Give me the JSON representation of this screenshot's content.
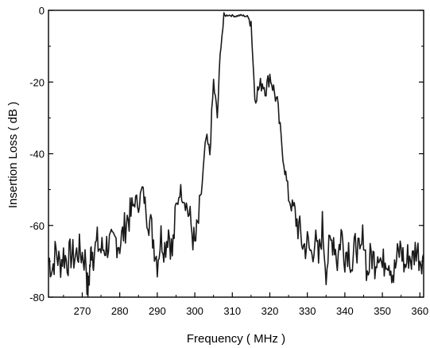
{
  "chart_data": {
    "type": "line",
    "title": "",
    "xlabel": "Frequency ( MHz )",
    "ylabel": "Insertion Loss ( dB )",
    "xlim": [
      261,
      361
    ],
    "ylim": [
      -80,
      0
    ],
    "x_ticks": [
      270,
      280,
      290,
      300,
      310,
      320,
      330,
      340,
      350,
      360
    ],
    "x_tick_labels": [
      "270",
      "280",
      "290",
      "300",
      "310",
      "320",
      "330",
      "340",
      "350",
      "360"
    ],
    "y_ticks": [
      0,
      -20,
      -40,
      -60,
      -80
    ],
    "y_tick_labels": [
      "0",
      "-20",
      "-40",
      "-60",
      "-80"
    ],
    "grid": false,
    "line_color": "#1a1a1a",
    "series": [
      {
        "x": [
          261,
          262,
          263,
          264,
          265,
          266,
          267,
          268,
          269,
          270,
          271,
          271.5,
          272,
          272.5,
          273,
          274,
          275,
          276,
          277,
          278,
          279,
          280,
          281,
          282,
          283,
          284,
          285,
          286,
          287,
          288,
          289,
          290,
          291,
          292,
          293,
          294,
          295,
          296,
          297,
          298,
          299,
          300,
          301,
          302,
          303,
          304,
          305,
          306,
          307,
          308,
          309,
          310,
          311,
          312,
          313,
          314,
          315,
          316,
          317,
          318,
          319,
          320,
          321,
          322,
          323,
          324,
          325,
          326,
          327,
          328,
          329,
          330,
          331,
          332,
          333,
          334,
          335,
          336,
          337,
          338,
          339,
          340,
          341,
          342,
          343,
          344,
          345,
          346,
          347,
          348,
          349,
          350,
          351,
          352,
          353,
          354,
          355,
          356,
          357,
          358,
          359,
          360,
          361
        ],
        "y": [
          -69,
          -72,
          -67,
          -71,
          -68,
          -70,
          -68,
          -69,
          -67,
          -68,
          -70,
          -80,
          -72,
          -66,
          -68,
          -65,
          -67,
          -66,
          -65,
          -66,
          -64,
          -65,
          -62,
          -58,
          -57,
          -53,
          -54,
          -50,
          -55,
          -59,
          -64,
          -70,
          -63,
          -66,
          -61,
          -68,
          -56,
          -50,
          -52,
          -55,
          -60,
          -66,
          -59,
          -48,
          -36,
          -40,
          -20,
          -30,
          -8,
          -1.5,
          -1.3,
          -1.5,
          -1.6,
          -1.4,
          -1.5,
          -1.7,
          -3,
          -24,
          -22,
          -20,
          -22,
          -18,
          -22,
          -26,
          -36,
          -44,
          -52,
          -55,
          -58,
          -62,
          -66,
          -65,
          -68,
          -64,
          -70,
          -60,
          -72,
          -66,
          -63,
          -70,
          -62,
          -68,
          -66,
          -72,
          -64,
          -70,
          -62,
          -74,
          -68,
          -70,
          -66,
          -72,
          -68,
          -70,
          -74,
          -69,
          -66,
          -72,
          -68,
          -70,
          -66,
          -69,
          -68
        ]
      }
    ]
  }
}
